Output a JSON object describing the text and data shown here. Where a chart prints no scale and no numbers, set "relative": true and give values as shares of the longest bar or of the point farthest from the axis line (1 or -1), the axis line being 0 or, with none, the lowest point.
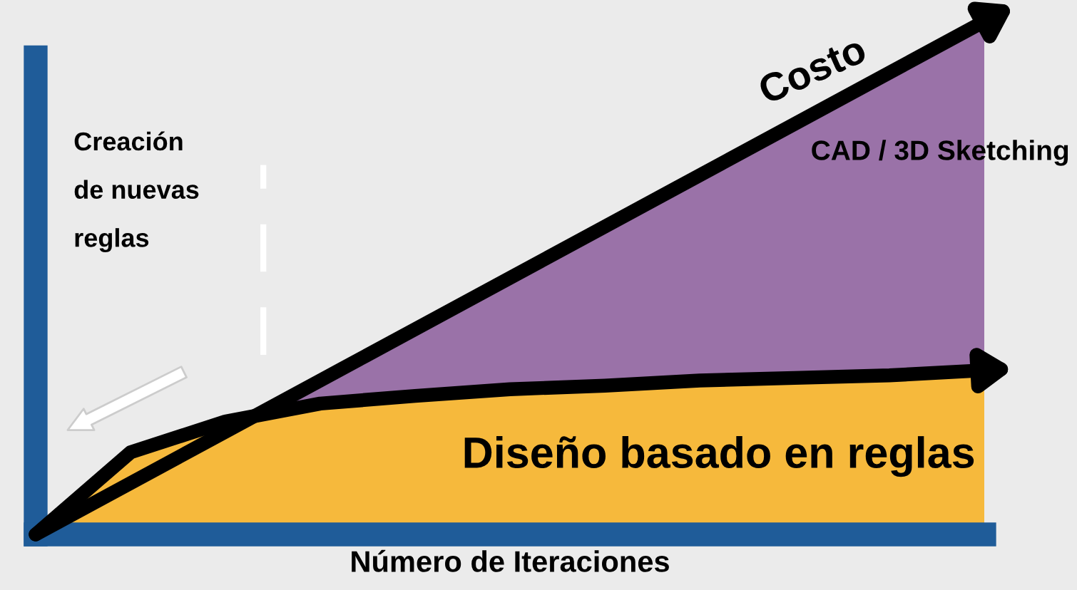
{
  "chart_data": {
    "type": "area",
    "relative": true,
    "categories": [
      null,
      null,
      null,
      null,
      null,
      null,
      null,
      null,
      null,
      null,
      null
    ],
    "xlabel": "Número de Iteraciones",
    "series": [
      {
        "name": "CAD / 3D Sketching",
        "color": "#9a72a8",
        "values": [
          0,
          0.1,
          0.2,
          0.3,
          0.4,
          0.5,
          0.6,
          0.7,
          0.8,
          0.9,
          1.0
        ]
      },
      {
        "name": "Diseño basado en reglas",
        "color": "#f6b93c",
        "values": [
          0,
          0.16,
          0.22,
          0.255,
          0.27,
          0.283,
          0.29,
          0.3,
          0.305,
          0.31,
          0.32
        ]
      }
    ],
    "annotations": [
      "Costo",
      "Creación\nde nuevas\nreglas"
    ],
    "tick_labels": false,
    "legend": false
  }
}
